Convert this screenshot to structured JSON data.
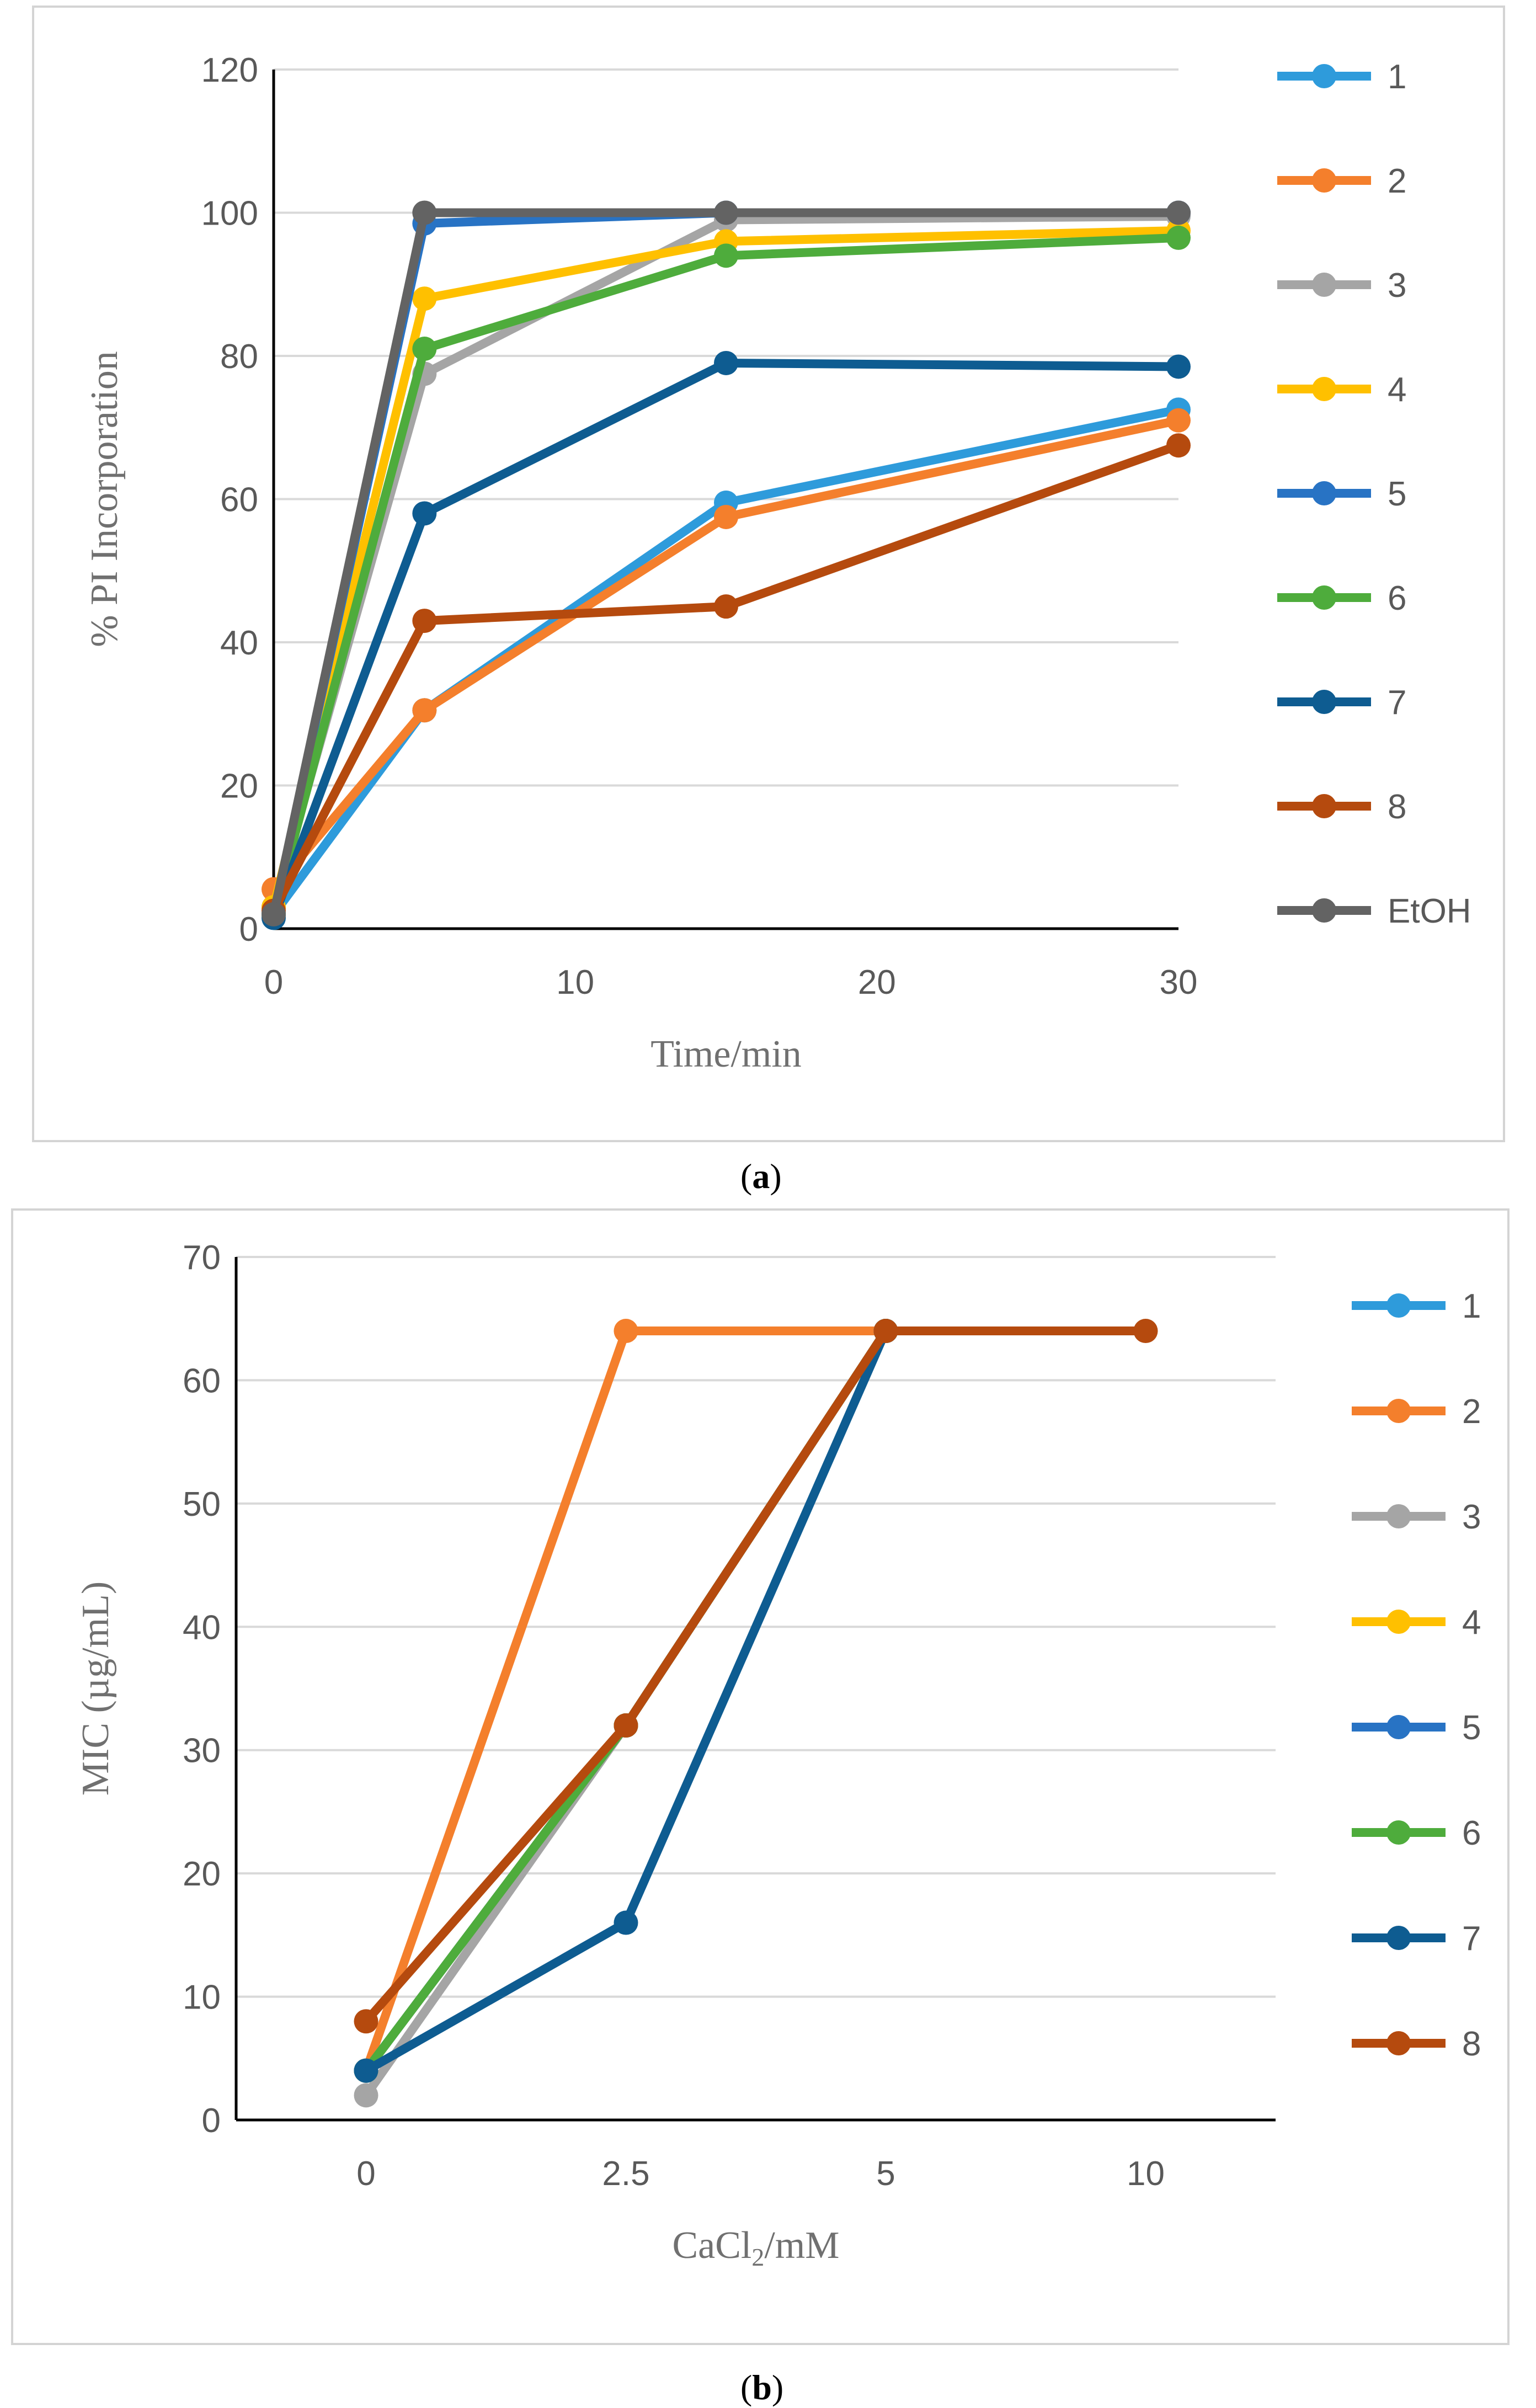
{
  "chart_data": [
    {
      "panel": "a",
      "type": "line",
      "title": "",
      "xlabel": "Time/min",
      "ylabel": "% PI Incorporation",
      "xlim": [
        0,
        30
      ],
      "ylim": [
        0,
        120
      ],
      "x_ticks": [
        "0",
        "10",
        "20",
        "30"
      ],
      "y_ticks": [
        "0",
        "20",
        "40",
        "60",
        "80",
        "100",
        "120"
      ],
      "grid": "horizontal",
      "legend": "right",
      "x": [
        0,
        5,
        15,
        30
      ],
      "series": [
        {
          "name": "1",
          "color": "#2E9BDB",
          "values": [
            2,
            30.5,
            59.5,
            72.5
          ]
        },
        {
          "name": "2",
          "color": "#F47F2C",
          "values": [
            5.5,
            30.5,
            57.5,
            71
          ]
        },
        {
          "name": "3",
          "color": "#A5A5A5",
          "values": [
            3,
            77.5,
            99,
            99.5
          ]
        },
        {
          "name": "4",
          "color": "#FFC000",
          "values": [
            3,
            88,
            96,
            97.5
          ]
        },
        {
          "name": "5",
          "color": "#2873C4",
          "values": [
            2,
            98.5,
            100,
            100
          ]
        },
        {
          "name": "6",
          "color": "#4EAC3C",
          "values": [
            2,
            81,
            94,
            96.5
          ]
        },
        {
          "name": "7",
          "color": "#0E5C91",
          "values": [
            1.5,
            58,
            79,
            78.5
          ]
        },
        {
          "name": "8",
          "color": "#B54A0E",
          "values": [
            2.5,
            43,
            45,
            67.5
          ]
        },
        {
          "name": "EtOH",
          "color": "#636363",
          "values": [
            2,
            100,
            100,
            100
          ]
        }
      ]
    },
    {
      "panel": "b",
      "type": "line",
      "title": "",
      "xlabel": "CaCl₂/mM",
      "xlabel_main": "CaCl",
      "xlabel_sub": "2",
      "xlabel_tail": "/mM",
      "ylabel": "MIC (µg/mL)",
      "categories": [
        "0",
        "2.5",
        "5",
        "10"
      ],
      "ylim": [
        0,
        70
      ],
      "y_ticks": [
        "0",
        "10",
        "20",
        "30",
        "40",
        "50",
        "60",
        "70"
      ],
      "grid": "horizontal",
      "legend": "right",
      "series": [
        {
          "name": "1",
          "color": "#2E9BDB",
          "values": [
            4,
            32,
            64,
            null
          ]
        },
        {
          "name": "2",
          "color": "#F47F2C",
          "values": [
            4,
            64,
            64,
            null
          ]
        },
        {
          "name": "3",
          "color": "#A5A5A5",
          "values": [
            2,
            32,
            64,
            null
          ]
        },
        {
          "name": "4",
          "color": "#FFC000",
          "values": [
            4,
            32,
            64,
            null
          ]
        },
        {
          "name": "5",
          "color": "#2873C4",
          "values": [
            4,
            32,
            64,
            null
          ]
        },
        {
          "name": "6",
          "color": "#4EAC3C",
          "values": [
            4,
            32,
            64,
            null
          ]
        },
        {
          "name": "7",
          "color": "#0E5C91",
          "values": [
            4,
            16,
            64,
            null
          ]
        },
        {
          "name": "8",
          "color": "#B54A0E",
          "values": [
            8,
            32,
            64,
            64
          ]
        }
      ]
    }
  ],
  "labels": {
    "a": "a",
    "b": "b"
  }
}
